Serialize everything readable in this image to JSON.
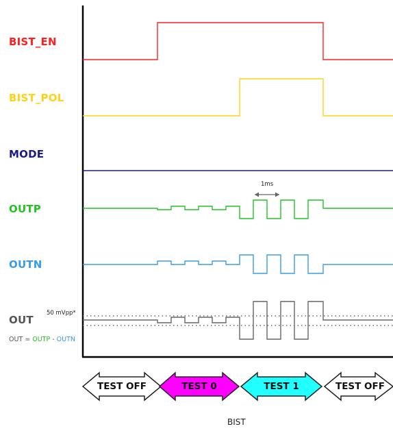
{
  "signals": [
    {
      "name": "BIST_EN",
      "color": "#ff1f1f"
    },
    {
      "name": "BIST_POL",
      "color": "#ffd21a"
    },
    {
      "name": "MODE",
      "color": "#1a1a8c"
    },
    {
      "name": "OUTP",
      "color": "#22c322"
    },
    {
      "name": "OUTN",
      "color": "#3a9be6"
    },
    {
      "name": "OUT",
      "color": "#555555"
    }
  ],
  "out_equation": {
    "lhs": "OUT",
    "eq": " = ",
    "outp": "OUTP",
    "minus": " - ",
    "outn": "OUTN"
  },
  "amplitude_label": "50 mVpp*",
  "period_label": "1ms",
  "phases": [
    {
      "label": "TEST OFF",
      "fill": "#ffffff"
    },
    {
      "label": "TEST 0",
      "fill": "#ff00ff"
    },
    {
      "label": "TEST 1",
      "fill": "#22ffff"
    },
    {
      "label": "TEST OFF",
      "fill": "#ffffff"
    }
  ],
  "caption": "BIST"
}
